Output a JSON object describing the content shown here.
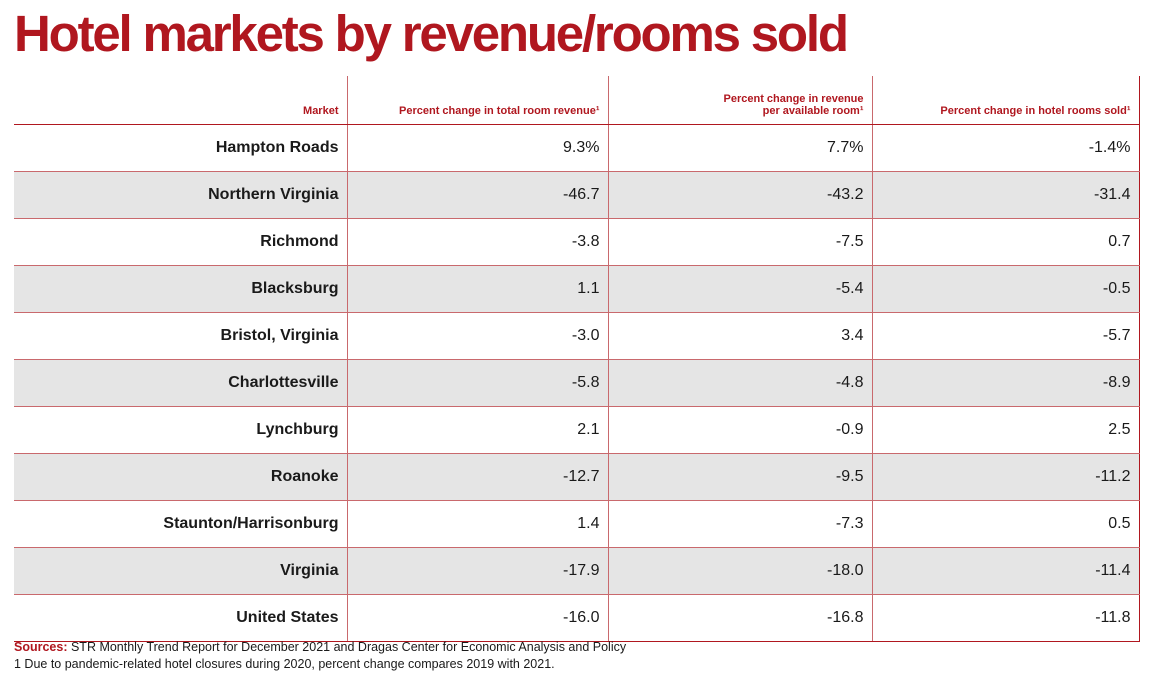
{
  "title": "Hotel markets by revenue/rooms sold",
  "chart_data": {
    "type": "table",
    "title": "Hotel markets by revenue/rooms sold",
    "columns": [
      "Market",
      "Percent change in total room revenue¹",
      "Percent change in revenue per available room¹",
      "Percent change in hotel rooms sold¹"
    ],
    "rows": [
      {
        "market": "Hampton Roads",
        "values": [
          "9.3%",
          "7.7%",
          "-1.4%"
        ]
      },
      {
        "market": "Northern Virginia",
        "values": [
          "-46.7",
          "-43.2",
          "-31.4"
        ]
      },
      {
        "market": "Richmond",
        "values": [
          "-3.8",
          "-7.5",
          "0.7"
        ]
      },
      {
        "market": "Blacksburg",
        "values": [
          "1.1",
          "-5.4",
          "-0.5"
        ]
      },
      {
        "market": "Bristol, Virginia",
        "values": [
          "-3.0",
          "3.4",
          "-5.7"
        ]
      },
      {
        "market": "Charlottesville",
        "values": [
          "-5.8",
          "-4.8",
          "-8.9"
        ]
      },
      {
        "market": "Lynchburg",
        "values": [
          "2.1",
          "-0.9",
          "2.5"
        ]
      },
      {
        "market": "Roanoke",
        "values": [
          "-12.7",
          "-9.5",
          "-11.2"
        ]
      },
      {
        "market": "Staunton/Harrisonburg",
        "values": [
          "1.4",
          "-7.3",
          "0.5"
        ]
      },
      {
        "market": "Virginia",
        "values": [
          "-17.9",
          "-18.0",
          "-11.4"
        ]
      },
      {
        "market": "United States",
        "values": [
          "-16.0",
          "-16.8",
          "-11.8"
        ]
      }
    ]
  },
  "footnotes": {
    "sources_label": "Sources:",
    "sources_text": " STR Monthly Trend Report for December 2021 and Dragas Center for Economic Analysis and Policy",
    "note": "1 Due to pandemic-related hotel closures during 2020, percent change compares 2019 with 2021."
  },
  "colors": {
    "accent": "#b0171f",
    "row_shade": "#e5e5e5",
    "text": "#1a1a1a"
  }
}
